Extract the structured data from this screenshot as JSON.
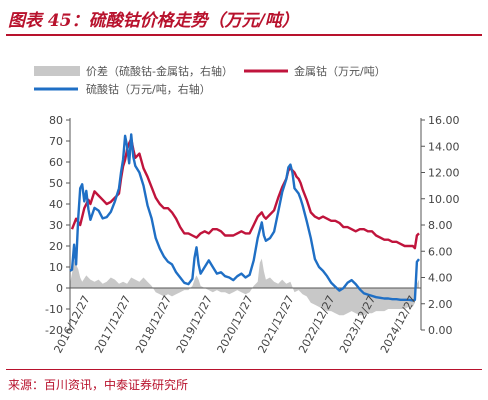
{
  "header": {
    "title": "图表 45：硫酸钴价格走势（万元/吨）",
    "source": "来源：百川资讯，中泰证券研究所"
  },
  "colors": {
    "accent": "#b8122d",
    "spread": "#c8c8c8",
    "metal": "#c0143c",
    "sulfate": "#1f6fc5"
  },
  "chart_data": {
    "type": "line",
    "legend": [
      {
        "name": "价差（硫酸钴-金属钴，右轴）",
        "style": "area"
      },
      {
        "name": "金属钴（万元/吨）",
        "style": "line"
      },
      {
        "name": "硫酸钴（万元/吨，右轴）",
        "style": "line"
      }
    ],
    "legend_position": "top",
    "grid": false,
    "left_axis": {
      "ylim": [
        -20,
        80
      ],
      "ticks": [
        "80",
        "70",
        "60",
        "50",
        "40",
        "30",
        "20",
        "10",
        "0",
        "-10",
        "-20"
      ]
    },
    "right_axis": {
      "ylim": [
        0,
        16
      ],
      "ticks": [
        "16.00",
        "14.00",
        "12.00",
        "10.00",
        "8.00",
        "6.00",
        "4.00",
        "2.00",
        "0.00"
      ]
    },
    "x_ticks": [
      "2016/12/27",
      "2017/12/27",
      "2018/12/27",
      "2019/12/27",
      "2020/12/27",
      "2021/12/27",
      "2022/12/27",
      "2023/12/27",
      "2024/12/27"
    ],
    "x_range": [
      2016.5,
      2025.1
    ],
    "series": [
      {
        "name": "金属钴（万元/吨）",
        "axis": "left",
        "points": [
          [
            2016.55,
            28
          ],
          [
            2016.65,
            33
          ],
          [
            2016.75,
            30
          ],
          [
            2016.85,
            38
          ],
          [
            2016.95,
            42
          ],
          [
            2017.0,
            40
          ],
          [
            2017.1,
            46
          ],
          [
            2017.2,
            44
          ],
          [
            2017.3,
            42
          ],
          [
            2017.4,
            40
          ],
          [
            2017.5,
            41
          ],
          [
            2017.6,
            43
          ],
          [
            2017.7,
            45
          ],
          [
            2017.75,
            52
          ],
          [
            2017.8,
            58
          ],
          [
            2017.85,
            61
          ],
          [
            2017.9,
            66
          ],
          [
            2017.95,
            69
          ],
          [
            2018.0,
            71
          ],
          [
            2018.05,
            66
          ],
          [
            2018.1,
            62
          ],
          [
            2018.2,
            64
          ],
          [
            2018.3,
            57
          ],
          [
            2018.4,
            53
          ],
          [
            2018.5,
            48
          ],
          [
            2018.6,
            43
          ],
          [
            2018.7,
            40
          ],
          [
            2018.8,
            38
          ],
          [
            2018.9,
            38
          ],
          [
            2019.0,
            36
          ],
          [
            2019.1,
            33
          ],
          [
            2019.2,
            29
          ],
          [
            2019.3,
            26
          ],
          [
            2019.4,
            26
          ],
          [
            2019.5,
            25
          ],
          [
            2019.6,
            24
          ],
          [
            2019.7,
            26
          ],
          [
            2019.8,
            27
          ],
          [
            2019.9,
            26
          ],
          [
            2020.0,
            28
          ],
          [
            2020.1,
            28
          ],
          [
            2020.2,
            27
          ],
          [
            2020.3,
            25
          ],
          [
            2020.4,
            25
          ],
          [
            2020.5,
            25
          ],
          [
            2020.6,
            26
          ],
          [
            2020.7,
            27
          ],
          [
            2020.8,
            26
          ],
          [
            2020.9,
            26
          ],
          [
            2021.0,
            30
          ],
          [
            2021.1,
            34
          ],
          [
            2021.2,
            36
          ],
          [
            2021.25,
            34
          ],
          [
            2021.3,
            33
          ],
          [
            2021.4,
            35
          ],
          [
            2021.5,
            37
          ],
          [
            2021.6,
            43
          ],
          [
            2021.7,
            48
          ],
          [
            2021.8,
            52
          ],
          [
            2021.85,
            56
          ],
          [
            2021.9,
            57
          ],
          [
            2021.95,
            56
          ],
          [
            2022.0,
            55
          ],
          [
            2022.05,
            53
          ],
          [
            2022.1,
            52
          ],
          [
            2022.15,
            50
          ],
          [
            2022.2,
            47
          ],
          [
            2022.3,
            42
          ],
          [
            2022.4,
            36
          ],
          [
            2022.5,
            34
          ],
          [
            2022.6,
            33
          ],
          [
            2022.7,
            34
          ],
          [
            2022.8,
            33
          ],
          [
            2022.9,
            32
          ],
          [
            2023.0,
            32
          ],
          [
            2023.1,
            31
          ],
          [
            2023.2,
            29
          ],
          [
            2023.3,
            29
          ],
          [
            2023.4,
            28
          ],
          [
            2023.5,
            27
          ],
          [
            2023.6,
            28
          ],
          [
            2023.7,
            28
          ],
          [
            2023.8,
            27
          ],
          [
            2023.9,
            27
          ],
          [
            2024.0,
            25
          ],
          [
            2024.1,
            24
          ],
          [
            2024.2,
            23
          ],
          [
            2024.3,
            23
          ],
          [
            2024.4,
            22
          ],
          [
            2024.5,
            22
          ],
          [
            2024.6,
            21
          ],
          [
            2024.7,
            20
          ],
          [
            2024.8,
            20
          ],
          [
            2024.9,
            20
          ],
          [
            2024.95,
            19
          ],
          [
            2025.0,
            25
          ],
          [
            2025.05,
            26
          ]
        ]
      },
      {
        "name": "硫酸钴（万元/吨，右轴）",
        "axis": "right",
        "points": [
          [
            2016.5,
            4.5
          ],
          [
            2016.55,
            4.6
          ],
          [
            2016.6,
            6.5
          ],
          [
            2016.65,
            5.0
          ],
          [
            2016.7,
            8.5
          ],
          [
            2016.75,
            10.8
          ],
          [
            2016.8,
            11.1
          ],
          [
            2016.85,
            9.8
          ],
          [
            2016.9,
            10.6
          ],
          [
            2016.95,
            9.2
          ],
          [
            2017.0,
            8.4
          ],
          [
            2017.1,
            9.3
          ],
          [
            2017.2,
            9.1
          ],
          [
            2017.3,
            8.5
          ],
          [
            2017.4,
            8.6
          ],
          [
            2017.5,
            9.0
          ],
          [
            2017.6,
            9.8
          ],
          [
            2017.7,
            10.8
          ],
          [
            2017.75,
            12.0
          ],
          [
            2017.8,
            13.0
          ],
          [
            2017.85,
            14.8
          ],
          [
            2017.9,
            14.0
          ],
          [
            2017.95,
            12.7
          ],
          [
            2018.0,
            14.9
          ],
          [
            2018.05,
            13.2
          ],
          [
            2018.1,
            12.5
          ],
          [
            2018.2,
            12.0
          ],
          [
            2018.3,
            11.0
          ],
          [
            2018.4,
            9.5
          ],
          [
            2018.5,
            8.5
          ],
          [
            2018.6,
            7.0
          ],
          [
            2018.7,
            6.2
          ],
          [
            2018.8,
            5.6
          ],
          [
            2018.9,
            5.2
          ],
          [
            2019.0,
            5.0
          ],
          [
            2019.1,
            4.4
          ],
          [
            2019.2,
            4.0
          ],
          [
            2019.3,
            3.6
          ],
          [
            2019.4,
            3.5
          ],
          [
            2019.5,
            3.9
          ],
          [
            2019.55,
            5.5
          ],
          [
            2019.6,
            6.3
          ],
          [
            2019.65,
            5.0
          ],
          [
            2019.7,
            4.3
          ],
          [
            2019.8,
            4.8
          ],
          [
            2019.9,
            5.3
          ],
          [
            2020.0,
            4.8
          ],
          [
            2020.1,
            4.3
          ],
          [
            2020.2,
            4.4
          ],
          [
            2020.3,
            4.1
          ],
          [
            2020.4,
            4.0
          ],
          [
            2020.5,
            3.8
          ],
          [
            2020.6,
            4.1
          ],
          [
            2020.7,
            4.3
          ],
          [
            2020.8,
            4.0
          ],
          [
            2020.9,
            4.2
          ],
          [
            2021.0,
            5.3
          ],
          [
            2021.1,
            7.0
          ],
          [
            2021.2,
            8.2
          ],
          [
            2021.25,
            7.2
          ],
          [
            2021.3,
            6.8
          ],
          [
            2021.4,
            7.0
          ],
          [
            2021.5,
            7.5
          ],
          [
            2021.6,
            9.0
          ],
          [
            2021.7,
            10.5
          ],
          [
            2021.8,
            11.5
          ],
          [
            2021.85,
            12.4
          ],
          [
            2021.9,
            12.6
          ],
          [
            2021.95,
            12.0
          ],
          [
            2022.0,
            10.8
          ],
          [
            2022.1,
            10.4
          ],
          [
            2022.15,
            10.0
          ],
          [
            2022.2,
            9.5
          ],
          [
            2022.3,
            8.3
          ],
          [
            2022.4,
            7.0
          ],
          [
            2022.5,
            5.4
          ],
          [
            2022.6,
            4.8
          ],
          [
            2022.7,
            4.5
          ],
          [
            2022.8,
            4.1
          ],
          [
            2022.9,
            3.6
          ],
          [
            2023.0,
            3.3
          ],
          [
            2023.1,
            3.0
          ],
          [
            2023.2,
            3.2
          ],
          [
            2023.3,
            3.6
          ],
          [
            2023.4,
            3.8
          ],
          [
            2023.5,
            3.5
          ],
          [
            2023.6,
            3.1
          ],
          [
            2023.7,
            2.8
          ],
          [
            2023.8,
            2.7
          ],
          [
            2023.9,
            2.6
          ],
          [
            2024.0,
            2.5
          ],
          [
            2024.1,
            2.45
          ],
          [
            2024.2,
            2.4
          ],
          [
            2024.3,
            2.4
          ],
          [
            2024.4,
            2.35
          ],
          [
            2024.5,
            2.35
          ],
          [
            2024.6,
            2.3
          ],
          [
            2024.7,
            2.3
          ],
          [
            2024.8,
            2.3
          ],
          [
            2024.9,
            2.25
          ],
          [
            2024.95,
            2.3
          ],
          [
            2025.0,
            5.2
          ],
          [
            2025.05,
            5.4
          ]
        ]
      },
      {
        "name": "价差（硫酸钴-金属钴，右轴）",
        "axis": "left",
        "style": "area",
        "points": [
          [
            2016.5,
            2
          ],
          [
            2016.55,
            7
          ],
          [
            2016.6,
            13
          ],
          [
            2016.65,
            11
          ],
          [
            2016.7,
            9
          ],
          [
            2016.75,
            5
          ],
          [
            2016.8,
            3
          ],
          [
            2016.9,
            6
          ],
          [
            2017.0,
            4
          ],
          [
            2017.1,
            3
          ],
          [
            2017.2,
            4
          ],
          [
            2017.3,
            2
          ],
          [
            2017.4,
            3
          ],
          [
            2017.5,
            5
          ],
          [
            2017.6,
            4
          ],
          [
            2017.7,
            2
          ],
          [
            2017.8,
            3
          ],
          [
            2017.9,
            2
          ],
          [
            2018.0,
            5
          ],
          [
            2018.1,
            4
          ],
          [
            2018.2,
            3
          ],
          [
            2018.3,
            5
          ],
          [
            2018.4,
            3
          ],
          [
            2018.5,
            1
          ],
          [
            2018.6,
            -2
          ],
          [
            2018.7,
            -3
          ],
          [
            2018.8,
            -4
          ],
          [
            2018.9,
            -3
          ],
          [
            2019.0,
            -4
          ],
          [
            2019.1,
            -3
          ],
          [
            2019.2,
            -2
          ],
          [
            2019.3,
            -1
          ],
          [
            2019.4,
            -1
          ],
          [
            2019.5,
            1
          ],
          [
            2019.55,
            4
          ],
          [
            2019.6,
            6
          ],
          [
            2019.65,
            4
          ],
          [
            2019.7,
            1
          ],
          [
            2019.8,
            0
          ],
          [
            2019.9,
            -1
          ],
          [
            2020.0,
            -2
          ],
          [
            2020.1,
            -1
          ],
          [
            2020.2,
            -2
          ],
          [
            2020.3,
            -2
          ],
          [
            2020.4,
            -3
          ],
          [
            2020.5,
            -2
          ],
          [
            2020.6,
            -1
          ],
          [
            2020.7,
            -2
          ],
          [
            2020.8,
            -3
          ],
          [
            2020.9,
            -2
          ],
          [
            2021.0,
            1
          ],
          [
            2021.1,
            3
          ],
          [
            2021.15,
            12
          ],
          [
            2021.2,
            14
          ],
          [
            2021.25,
            8
          ],
          [
            2021.3,
            4
          ],
          [
            2021.4,
            5
          ],
          [
            2021.5,
            3
          ],
          [
            2021.6,
            2
          ],
          [
            2021.7,
            4
          ],
          [
            2021.8,
            2
          ],
          [
            2021.9,
            3
          ],
          [
            2022.0,
            -2
          ],
          [
            2022.1,
            -1
          ],
          [
            2022.2,
            -3
          ],
          [
            2022.3,
            -4
          ],
          [
            2022.4,
            -7
          ],
          [
            2022.5,
            -8
          ],
          [
            2022.6,
            -9
          ],
          [
            2022.7,
            -10
          ],
          [
            2022.8,
            -11
          ],
          [
            2022.9,
            -11
          ],
          [
            2023.0,
            -12
          ],
          [
            2023.1,
            -13
          ],
          [
            2023.2,
            -13
          ],
          [
            2023.3,
            -12
          ],
          [
            2023.4,
            -11
          ],
          [
            2023.5,
            -12
          ],
          [
            2023.6,
            -13
          ],
          [
            2023.7,
            -13
          ],
          [
            2023.8,
            -12
          ],
          [
            2023.9,
            -12
          ],
          [
            2024.0,
            -11
          ],
          [
            2024.1,
            -11
          ],
          [
            2024.2,
            -11
          ],
          [
            2024.3,
            -10
          ],
          [
            2024.4,
            -10
          ],
          [
            2024.5,
            -10
          ],
          [
            2024.6,
            -10
          ],
          [
            2024.7,
            -10
          ],
          [
            2024.8,
            -9
          ],
          [
            2024.9,
            -9
          ],
          [
            2024.95,
            -7
          ],
          [
            2025.0,
            2
          ],
          [
            2025.05,
            4
          ]
        ]
      }
    ]
  }
}
